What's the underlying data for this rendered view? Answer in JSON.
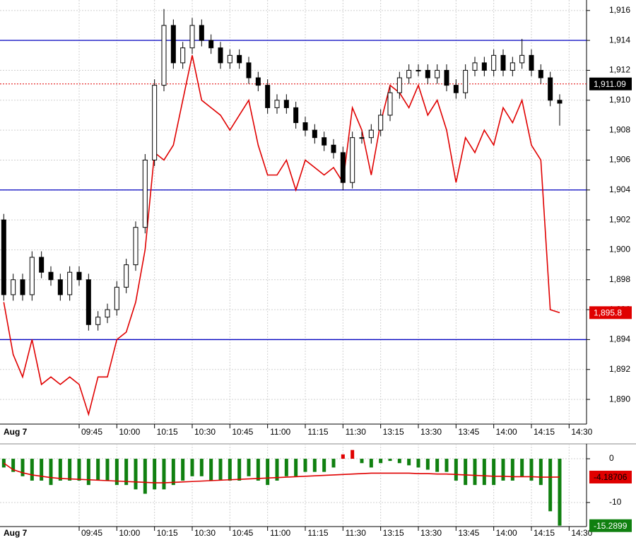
{
  "chart_data": [
    {
      "type": "candlestick",
      "date_label": "Aug 7",
      "x": [
        -8,
        -7,
        -6,
        -5,
        -4,
        -3,
        -2,
        -1,
        0,
        1,
        2,
        3,
        4,
        5,
        6,
        7,
        8,
        9,
        10,
        11,
        12,
        13,
        14,
        15,
        16,
        17,
        18,
        19,
        20,
        21,
        22,
        23,
        24,
        25,
        26,
        27,
        28,
        29,
        30,
        31,
        32,
        33,
        34,
        35,
        36,
        37,
        38,
        39,
        40,
        41,
        42,
        43,
        44,
        45,
        46,
        47,
        48,
        49,
        50,
        51
      ],
      "open": [
        1902,
        1897,
        1898,
        1897,
        1899.5,
        1898.5,
        1898,
        1897,
        1898.5,
        1898,
        1895,
        1895.5,
        1896,
        1897.5,
        1899,
        1901.5,
        1906,
        1911,
        1915,
        1912.5,
        1913.5,
        1915,
        1914,
        1913.5,
        1912.5,
        1913,
        1912.5,
        1911.5,
        1911,
        1909.5,
        1910,
        1909.5,
        1908.5,
        1908,
        1907.5,
        1907,
        1906.5,
        1904.5,
        1907.5,
        1907.5,
        1908,
        1909,
        1910.5,
        1911.5,
        1912,
        1912,
        1911.5,
        1912,
        1911,
        1910.5,
        1912,
        1912.5,
        1912,
        1913,
        1912,
        1912.5,
        1913,
        1912,
        1911.5,
        1910
      ],
      "high": [
        1902.4,
        1898.4,
        1898.4,
        1899.9,
        1899.9,
        1898.9,
        1898.4,
        1898.9,
        1898.9,
        1898.4,
        1895.9,
        1896.4,
        1897.9,
        1899.4,
        1901.9,
        1906.4,
        1911.4,
        1916.1,
        1915.4,
        1913.9,
        1915.5,
        1915.4,
        1914.4,
        1913.9,
        1913.4,
        1913.4,
        1912.9,
        1911.9,
        1911.4,
        1910.4,
        1910.4,
        1909.9,
        1908.9,
        1908.4,
        1907.9,
        1907.4,
        1906.9,
        1907.9,
        1907.9,
        1908.4,
        1909.4,
        1910.9,
        1911.9,
        1912.4,
        1912.4,
        1912.4,
        1912.4,
        1912.4,
        1911.4,
        1912.4,
        1912.9,
        1912.9,
        1913.4,
        1913.4,
        1912.9,
        1914.1,
        1913.4,
        1912.4,
        1911.9,
        1910.4
      ],
      "low": [
        1896.6,
        1896.6,
        1896.6,
        1896.6,
        1898.1,
        1897.6,
        1896.6,
        1896.6,
        1897.6,
        1894.6,
        1894.6,
        1895.1,
        1895.6,
        1897.1,
        1898.6,
        1901.1,
        1905.6,
        1910.6,
        1912.1,
        1912.1,
        1913.1,
        1913.6,
        1913.1,
        1912.1,
        1912.1,
        1912.1,
        1911.1,
        1910.6,
        1909.1,
        1909.1,
        1909.1,
        1908.1,
        1907.6,
        1907.1,
        1906.6,
        1906.1,
        1904,
        1904.1,
        1907.1,
        1907.1,
        1907.6,
        1908.6,
        1910.1,
        1911.1,
        1911.6,
        1911.1,
        1911.1,
        1910.6,
        1910.1,
        1910.1,
        1911.6,
        1911.6,
        1911.6,
        1911.6,
        1911.6,
        1912.1,
        1911.6,
        1911.1,
        1909.6,
        1908.3
      ],
      "close": [
        1897,
        1898,
        1897,
        1899.5,
        1898.5,
        1898,
        1897,
        1898.5,
        1898,
        1895,
        1895.5,
        1896,
        1897.5,
        1899,
        1901.5,
        1906,
        1911,
        1915,
        1912.5,
        1913.5,
        1915,
        1914,
        1913.5,
        1912.5,
        1913,
        1912.5,
        1911.5,
        1911,
        1909.5,
        1910,
        1909.5,
        1908.5,
        1908,
        1907.5,
        1907,
        1906.5,
        1904.5,
        1907.5,
        1907.5,
        1908,
        1909,
        1910.5,
        1911.5,
        1912,
        1912,
        1911.5,
        1912,
        1911,
        1910.5,
        1912,
        1912.5,
        1912,
        1913,
        1912,
        1912.5,
        1913,
        1912,
        1911.5,
        1910,
        1909.8
      ],
      "up_color": "#ffffff",
      "down_color": "#000000",
      "overlay": {
        "color": "#e00000",
        "values": [
          1896.5,
          1893,
          1891.5,
          1894,
          1891,
          1891.5,
          1891,
          1891.5,
          1891,
          1889,
          1891.5,
          1891.5,
          1894,
          1894.5,
          1896.5,
          1900,
          1906.5,
          1906,
          1907,
          1910,
          1913,
          1910,
          1909.5,
          1909,
          1908,
          1909,
          1910,
          1907,
          1905,
          1905,
          1906,
          1904,
          1906,
          1905.5,
          1905,
          1905.5,
          1904.5,
          1909.5,
          1908,
          1905,
          1908.5,
          1911,
          1910.5,
          1909.5,
          1911,
          1909,
          1910,
          1908,
          1904.5,
          1907.5,
          1906.5,
          1908,
          1907,
          1909.5,
          1908.5,
          1910,
          1907,
          1906,
          1896,
          1895.8
        ],
        "last_label": "1,895.8"
      },
      "reference_line": {
        "value": 1911.09,
        "label": "1,911.09",
        "color": "#e00000"
      },
      "hlines": [
        1914,
        1904,
        1894
      ],
      "hline_color": "#0000c0",
      "xlim": [
        -8.4,
        53.85
      ],
      "xticks": [
        {
          "value": 0,
          "label": "09:45"
        },
        {
          "value": 4,
          "label": "10:00"
        },
        {
          "value": 8,
          "label": "10:15"
        },
        {
          "value": 12,
          "label": "10:30"
        },
        {
          "value": 16,
          "label": "10:45"
        },
        {
          "value": 20,
          "label": "11:00"
        },
        {
          "value": 24,
          "label": "11:15"
        },
        {
          "value": 28,
          "label": "11:30"
        },
        {
          "value": 32,
          "label": "13:15"
        },
        {
          "value": 36,
          "label": "13:30"
        },
        {
          "value": 40,
          "label": "13:45"
        },
        {
          "value": 44,
          "label": "14:00"
        },
        {
          "value": 48,
          "label": "14:15"
        },
        {
          "value": 52,
          "label": "14:30"
        }
      ],
      "ylim": [
        1888.35,
        1916.7
      ],
      "yticks": [
        {
          "value": 1890,
          "label": "1,890"
        },
        {
          "value": 1892,
          "label": "1,892"
        },
        {
          "value": 1894,
          "label": "1,894"
        },
        {
          "value": 1896,
          "label": "1,896"
        },
        {
          "value": 1898,
          "label": "1,898"
        },
        {
          "value": 1900,
          "label": "1,900"
        },
        {
          "value": 1902,
          "label": "1,902"
        },
        {
          "value": 1904,
          "label": "1,904"
        },
        {
          "value": 1906,
          "label": "1,906"
        },
        {
          "value": 1908,
          "label": "1,908"
        },
        {
          "value": 1910,
          "label": "1,910"
        },
        {
          "value": 1912,
          "label": "1,912"
        },
        {
          "value": 1914,
          "label": "1,914"
        },
        {
          "value": 1916,
          "label": "1,916"
        }
      ],
      "grid": true
    },
    {
      "type": "oscillator",
      "date_label": "Aug 7",
      "x": [
        -8,
        -7,
        -6,
        -5,
        -4,
        -3,
        -2,
        -1,
        0,
        1,
        2,
        3,
        4,
        5,
        6,
        7,
        8,
        9,
        10,
        11,
        12,
        13,
        14,
        15,
        16,
        17,
        18,
        19,
        20,
        21,
        22,
        23,
        24,
        25,
        26,
        27,
        28,
        29,
        30,
        31,
        32,
        33,
        34,
        35,
        36,
        37,
        38,
        39,
        40,
        41,
        42,
        43,
        44,
        45,
        46,
        47,
        48,
        49,
        50,
        51
      ],
      "values": [
        -2,
        -3,
        -4,
        -5,
        -5,
        -6,
        -5,
        -5,
        -5,
        -6,
        -5,
        -5,
        -6,
        -6,
        -7,
        -8,
        -7,
        -7,
        -6,
        -5,
        -4,
        -4,
        -5,
        -5,
        -5,
        -5,
        -4,
        -5,
        -6,
        -5,
        -4,
        -4,
        -3,
        -3,
        -3,
        -2,
        1,
        2,
        -1,
        -2,
        -1,
        -0.5,
        -1,
        -1.5,
        -2,
        -2.5,
        -3,
        -3,
        -5,
        -6,
        -6,
        -6,
        -6,
        -5,
        -5,
        -4,
        -5,
        -6,
        -12,
        -15.2899
      ],
      "positive_color": "#e00000",
      "negative_color": "#108010",
      "line": {
        "color": "#e00000",
        "values": [
          -1,
          -2.5,
          -3.2,
          -3.7,
          -4,
          -4.3,
          -4.5,
          -4.6,
          -4.7,
          -4.8,
          -4.9,
          -5,
          -5.1,
          -5.2,
          -5.3,
          -5.4,
          -5.5,
          -5.5,
          -5.4,
          -5.3,
          -5.2,
          -5.1,
          -5,
          -4.9,
          -4.8,
          -4.7,
          -4.6,
          -4.5,
          -4.4,
          -4.3,
          -4.2,
          -4.1,
          -4,
          -3.9,
          -3.8,
          -3.7,
          -3.6,
          -3.5,
          -3.4,
          -3.3,
          -3.3,
          -3.3,
          -3.3,
          -3.3,
          -3.4,
          -3.4,
          -3.5,
          -3.5,
          -3.6,
          -3.7,
          -3.8,
          -3.9,
          -4,
          -4,
          -4.1,
          -4.1,
          -4.1,
          -4.2,
          -4.2,
          -4.18706
        ]
      },
      "xlim": [
        -8.4,
        53.85
      ],
      "xticks": [
        {
          "value": 0,
          "label": "09:45"
        },
        {
          "value": 4,
          "label": "10:00"
        },
        {
          "value": 8,
          "label": "10:15"
        },
        {
          "value": 12,
          "label": "10:30"
        },
        {
          "value": 16,
          "label": "10:45"
        },
        {
          "value": 20,
          "label": "11:00"
        },
        {
          "value": 24,
          "label": "11:15"
        },
        {
          "value": 28,
          "label": "11:30"
        },
        {
          "value": 32,
          "label": "13:15"
        },
        {
          "value": 36,
          "label": "13:30"
        },
        {
          "value": 40,
          "label": "13:45"
        },
        {
          "value": 44,
          "label": "14:00"
        },
        {
          "value": 48,
          "label": "14:15"
        },
        {
          "value": 52,
          "label": "14:30"
        }
      ],
      "ylim": [
        -15.5,
        3.4
      ],
      "yticks": [
        0,
        -10
      ],
      "grid": true
    }
  ]
}
